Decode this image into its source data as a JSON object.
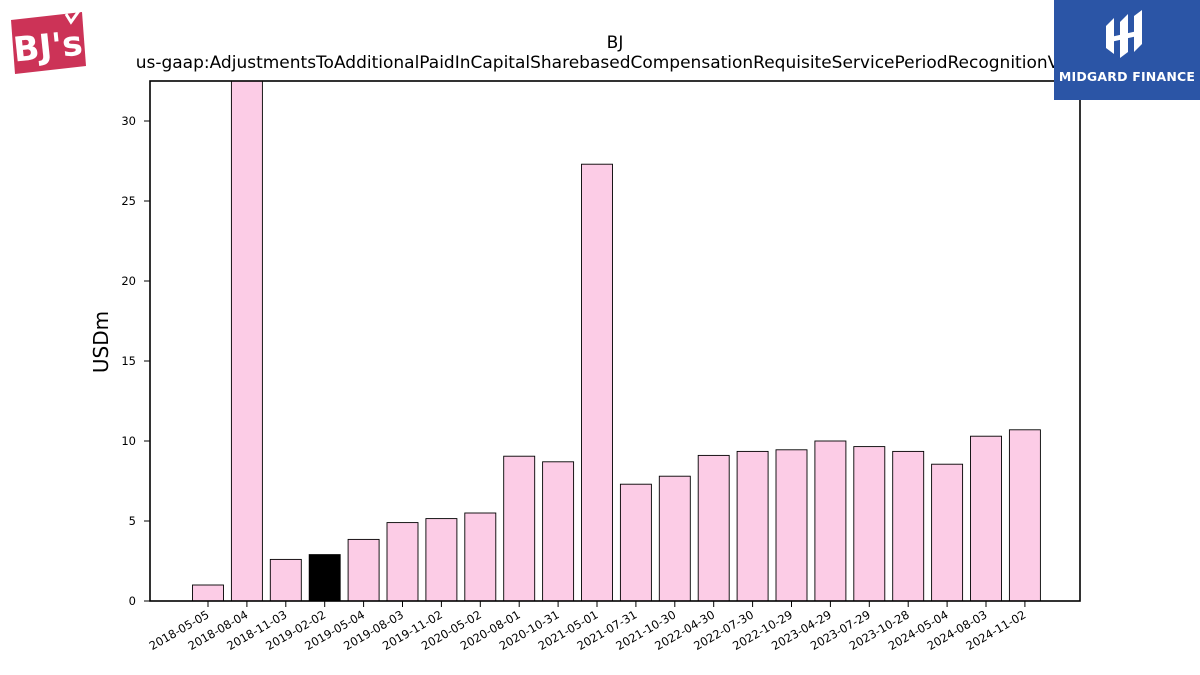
{
  "logos": {
    "left": {
      "text": "BJ's",
      "color": "#cc3357"
    },
    "right": {
      "text": "MIDGARD FINANCE",
      "color": "#2b55a6"
    }
  },
  "chart_data": {
    "type": "bar",
    "title": "BJ",
    "subtitle": "us-gaap:AdjustmentsToAdditionalPaidInCapitalSharebasedCompensationRequisiteServicePeriodRecognitionValue",
    "xlabel": "",
    "ylabel": "USDm",
    "ylim": [
      0,
      32.5
    ],
    "yticks": [
      0,
      5,
      10,
      15,
      20,
      25,
      30
    ],
    "grid": false,
    "bar_color": "#fccce6",
    "highlight_color": "#000000",
    "highlight_index": 3,
    "categories": [
      "2018-05-05",
      "2018-08-04",
      "2018-11-03",
      "2019-02-02",
      "2019-05-04",
      "2019-08-03",
      "2019-11-02",
      "2020-05-02",
      "2020-08-01",
      "2020-10-31",
      "2021-05-01",
      "2021-07-31",
      "2021-10-30",
      "2022-04-30",
      "2022-07-30",
      "2022-10-29",
      "2023-04-29",
      "2023-07-29",
      "2023-10-28",
      "2024-05-04",
      "2024-08-03",
      "2024-11-02"
    ],
    "values": [
      1.0,
      32.5,
      2.6,
      2.9,
      3.85,
      4.9,
      5.15,
      5.5,
      9.05,
      8.7,
      27.3,
      7.3,
      7.8,
      9.1,
      9.35,
      9.45,
      10.0,
      9.65,
      9.35,
      8.55,
      10.3,
      10.7
    ]
  }
}
